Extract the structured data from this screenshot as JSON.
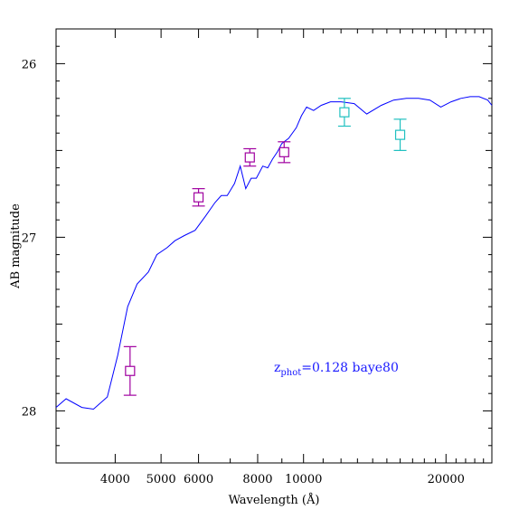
{
  "chart_data": {
    "type": "line",
    "xlabel": "Wavelength (Å)",
    "ylabel": "AB magnitude",
    "xscale": "log",
    "xlim": [
      3000,
      25000
    ],
    "ylim": [
      28.3,
      25.8
    ],
    "x_ticks": [
      {
        "value": 4000,
        "label": "4000"
      },
      {
        "value": 5000,
        "label": "5000"
      },
      {
        "value": 6000,
        "label": "6000"
      },
      {
        "value": 8000,
        "label": "8000"
      },
      {
        "value": 10000,
        "label": "10000"
      },
      {
        "value": 20000,
        "label": "20000"
      }
    ],
    "y_ticks": [
      {
        "value": 26,
        "label": "26"
      },
      {
        "value": 27,
        "label": "27"
      },
      {
        "value": 28,
        "label": "28"
      }
    ],
    "annotation": {
      "text": "z",
      "subscript": "phot",
      "suffix": "=0.128 baye80",
      "color": "#1a1aff"
    },
    "model_sed": {
      "color": "#0000ff",
      "x": [
        3000,
        3150,
        3400,
        3600,
        3850,
        4050,
        4250,
        4450,
        4700,
        4900,
        5150,
        5350,
        5600,
        5900,
        6200,
        6500,
        6700,
        6900,
        7150,
        7350,
        7550,
        7750,
        7950,
        8200,
        8400,
        8600,
        8800,
        9000,
        9300,
        9650,
        9900,
        10150,
        10500,
        10900,
        11400,
        12000,
        12800,
        13600,
        14600,
        15500,
        16500,
        17500,
        18500,
        19500,
        20500,
        21500,
        22500,
        23500,
        24500,
        25000
      ],
      "y": [
        27.98,
        27.93,
        27.98,
        27.99,
        27.92,
        27.68,
        27.4,
        27.27,
        27.2,
        27.1,
        27.06,
        27.02,
        26.99,
        26.96,
        26.88,
        26.8,
        26.76,
        26.76,
        26.69,
        26.59,
        26.72,
        26.66,
        26.66,
        26.59,
        26.6,
        26.55,
        26.51,
        26.46,
        26.43,
        26.37,
        26.3,
        26.25,
        26.27,
        26.24,
        26.22,
        26.22,
        26.23,
        26.29,
        26.24,
        26.21,
        26.2,
        26.2,
        26.21,
        26.25,
        26.22,
        26.2,
        26.19,
        26.19,
        26.21,
        26.24
      ]
    },
    "series": [
      {
        "color": "#a000a0",
        "points": [
          {
            "x": 4300,
            "y": 27.77,
            "err": 0.14
          },
          {
            "x": 6000,
            "y": 26.77,
            "err": 0.05
          },
          {
            "x": 7700,
            "y": 26.54,
            "err": 0.05
          },
          {
            "x": 9100,
            "y": 26.51,
            "err": 0.06
          }
        ]
      },
      {
        "color": "#20c0c0",
        "points": [
          {
            "x": 12200,
            "y": 26.28,
            "err": 0.08
          },
          {
            "x": 16000,
            "y": 26.41,
            "err": 0.09
          }
        ]
      }
    ]
  }
}
